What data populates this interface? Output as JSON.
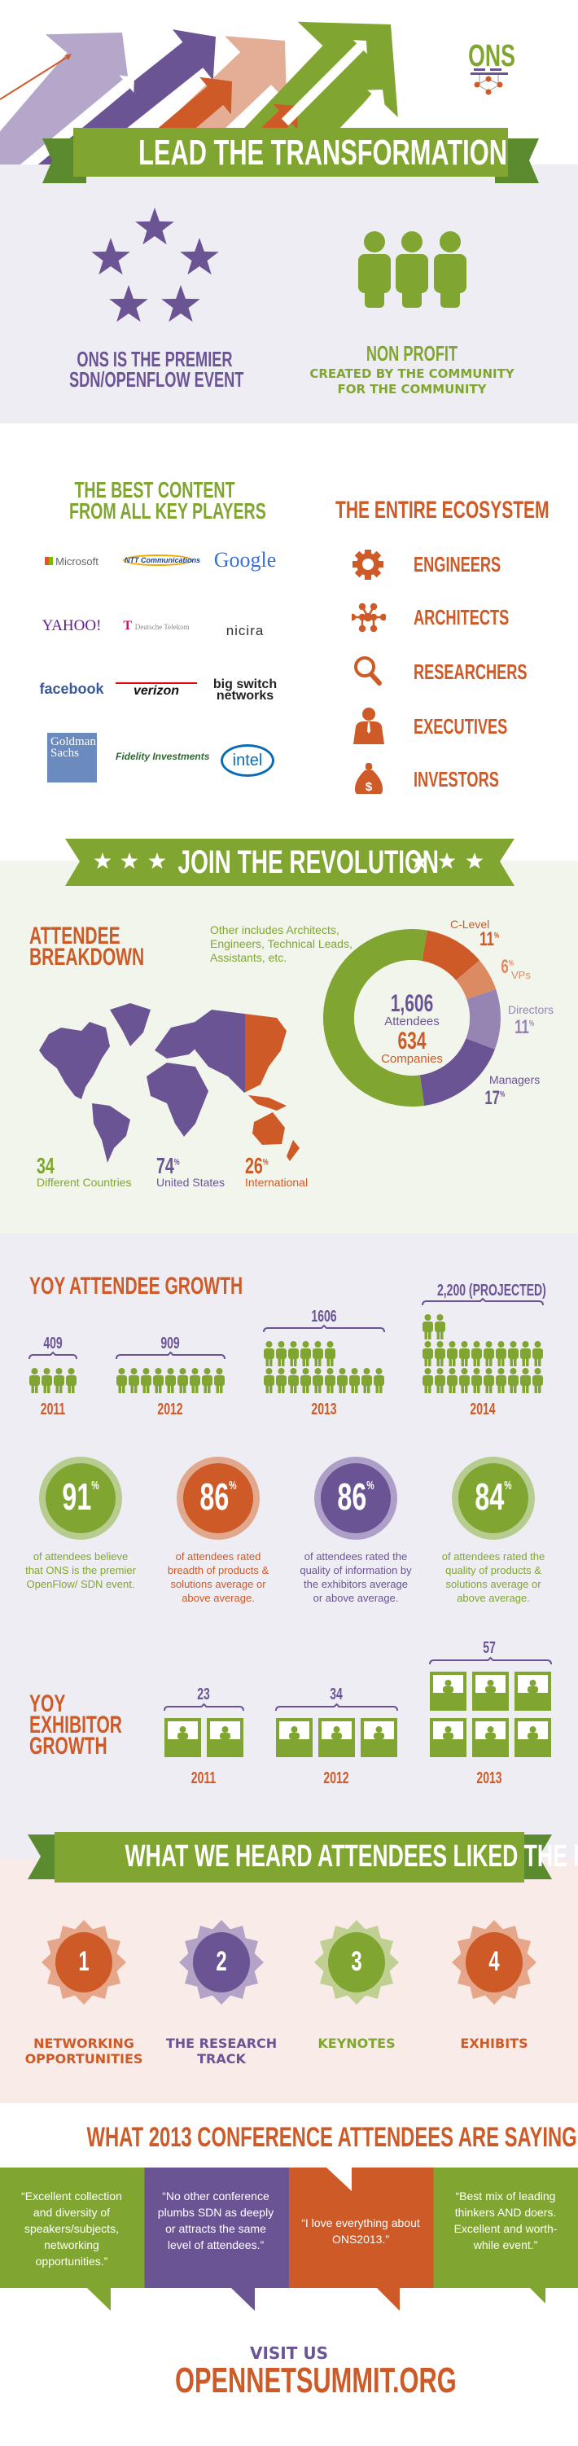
{
  "colors": {
    "green": "#80a631",
    "dark_green": "#5b8a2f",
    "purple": "#6b5494",
    "light_purple": "#b4a7c9",
    "orange": "#cd5a27",
    "light_orange": "#e5a88b",
    "lavender_bg": "#efedf4",
    "green_bg": "#f2f5eb",
    "pink_bg": "#f9ece8"
  },
  "header": {
    "logo_text": "ONS",
    "banner": "LEAD THE TRANSFORMATION"
  },
  "intro": {
    "left_title_1": "ONS IS THE PREMIER",
    "left_title_2": "SDN/OPENFLOW EVENT",
    "right_title": "NON PROFIT",
    "right_sub_1": "CREATED BY THE COMMUNITY",
    "right_sub_2": "FOR THE COMMUNITY"
  },
  "players": {
    "title_1": "THE BEST CONTENT",
    "title_2": "FROM ALL KEY PLAYERS",
    "logos": [
      "Microsoft",
      "NTT Communications",
      "Google",
      "YAHOO!",
      "Deutsche Telekom",
      "nicira",
      "facebook",
      "verizon",
      "big switch networks",
      "Goldman Sachs",
      "Fidelity Investments",
      "intel"
    ]
  },
  "ecosystem": {
    "title": "THE ENTIRE ECOSYSTEM",
    "items": [
      {
        "label": "ENGINEERS",
        "icon": "gear-icon"
      },
      {
        "label": "ARCHITECTS",
        "icon": "network-nodes-icon"
      },
      {
        "label": "RESEARCHERS",
        "icon": "magnifier-icon"
      },
      {
        "label": "EXECUTIVES",
        "icon": "executive-person-icon"
      },
      {
        "label": "INVESTORS",
        "icon": "money-bag-icon"
      }
    ]
  },
  "revolution": {
    "banner": "JOIN THE REVOLUTION"
  },
  "breakdown": {
    "title_1": "ATTENDEE",
    "title_2": "BREAKDOWN",
    "note": "Other includes Architects, Engineers, Technical Leads, Assistants, etc.",
    "attendees": "1,606",
    "attendees_label": "Attendees",
    "companies": "634",
    "companies_label": "Companies",
    "segments": [
      {
        "label": "C-Level",
        "value": 11,
        "color": "#cd5a27"
      },
      {
        "label": "VPs",
        "value": 6,
        "color": "#dc8a62"
      },
      {
        "label": "Directors",
        "value": 11,
        "color": "#9685b3"
      },
      {
        "label": "Managers",
        "value": 17,
        "color": "#6b5494"
      },
      {
        "value": 55,
        "color": "#80a631"
      }
    ],
    "pct": "%",
    "stats": [
      {
        "value": "34",
        "label": "Different Countries"
      },
      {
        "value": "74",
        "label": "United States"
      },
      {
        "value": "26",
        "label": "International"
      }
    ]
  },
  "attendee_growth": {
    "title": "YOY ATTENDEE GROWTH",
    "years": [
      {
        "year": "2011",
        "count": "409",
        "icons": 4
      },
      {
        "year": "2012",
        "count": "909",
        "icons": 9
      },
      {
        "year": "2013",
        "count": "1606",
        "icons": 16
      },
      {
        "year": "2014",
        "count": "2,200 (PROJECTED)",
        "icons": 22
      }
    ]
  },
  "ratings": [
    {
      "value": "91",
      "text": "of attendees believe that ONS is the premier OpenFlow/ SDN event.",
      "color": "#80a631",
      "ring": "#b7cc8f"
    },
    {
      "value": "86",
      "text": "of attendees rated breadth of products & solutions average or above average.",
      "color": "#cd5a27",
      "ring": "#e2a88e"
    },
    {
      "value": "86",
      "text": "of attendees rated the quality of information by the exhibitors average or above average.",
      "color": "#6b5494",
      "ring": "#ae9fc8"
    },
    {
      "value": "84",
      "text": "of attendees rated the quality of products & solutions average or above average.",
      "color": "#80a631",
      "ring": "#b7cc8f"
    }
  ],
  "exhibitor_growth": {
    "title_1": "YOY",
    "title_2": "EXHIBITOR",
    "title_3": "GROWTH",
    "years": [
      {
        "year": "2011",
        "count": "23",
        "booths": 2
      },
      {
        "year": "2012",
        "count": "34",
        "booths": 3
      },
      {
        "year": "2013",
        "count": "57",
        "booths": 6
      }
    ]
  },
  "liked": {
    "banner": "WHAT WE HEARD ATTENDEES LIKED THE MOST",
    "items": [
      {
        "rank": "1",
        "label_1": "NETWORKING",
        "label_2": "OPPORTUNITIES",
        "color": "#cd5a27",
        "burst": "#e6a68a"
      },
      {
        "rank": "2",
        "label_1": "THE RESEARCH",
        "label_2": "TRACK",
        "color": "#6b5494",
        "burst": "#b2a3c7"
      },
      {
        "rank": "3",
        "label_1": "KEYNOTES",
        "label_2": "",
        "color": "#80a631",
        "burst": "#bfd092"
      },
      {
        "rank": "4",
        "label_1": "EXHIBITS",
        "label_2": "",
        "color": "#cd5a27",
        "burst": "#e6a68a"
      }
    ]
  },
  "quotes": {
    "title": "WHAT 2013 CONFERENCE ATTENDEES ARE SAYING",
    "items": [
      {
        "text": "“Excellent collection and diversity of speakers/subjects, networking opportunities.”",
        "color": "#80a631"
      },
      {
        "text": "“No other conference plumbs SDN as deeply or attracts the same level of attendees.”",
        "color": "#6b5494"
      },
      {
        "text": "“I love everything about ONS2013.”",
        "color": "#cd5a27"
      },
      {
        "text": "“Best mix of leading thinkers AND doers. Excellent and worth-while event.”",
        "color": "#80a631"
      }
    ]
  },
  "footer": {
    "visit": "VISIT US",
    "url": "OPENNETSUMMIT.ORG"
  }
}
